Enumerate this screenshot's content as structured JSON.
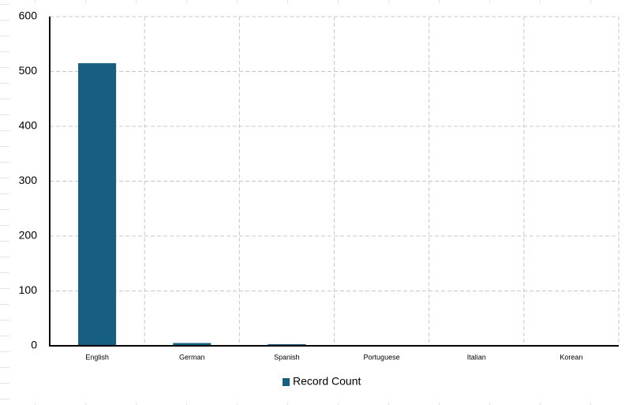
{
  "chart_data": {
    "type": "bar",
    "categories": [
      "English",
      "German",
      "Spanish",
      "Portuguese",
      "Italian",
      "Korean"
    ],
    "series": [
      {
        "name": "Record Count",
        "color": "#175f82",
        "values": [
          515,
          5,
          3,
          1,
          1,
          1
        ]
      }
    ],
    "ylim": [
      0,
      600
    ],
    "yticks": [
      0,
      100,
      200,
      300,
      400,
      500,
      600
    ],
    "grid": true,
    "legend": "bottom"
  }
}
